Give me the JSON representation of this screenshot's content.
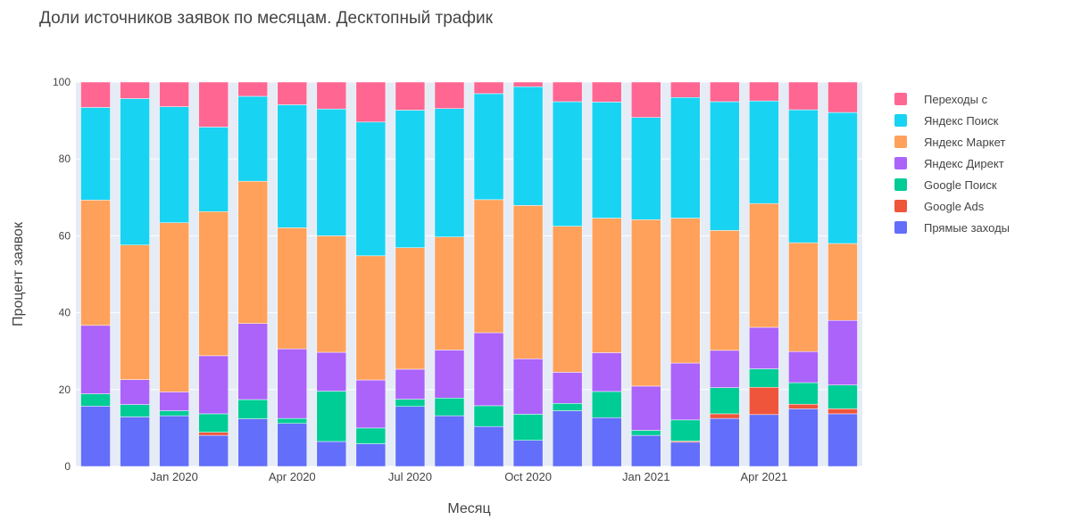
{
  "title": "Доли источников заявок по месяцам. Десктопный трафик",
  "colors": {
    "plot_bg": "#E5ECF6",
    "grid": "#FFFFFF",
    "axis_text": "#444444"
  },
  "chart_data": {
    "type": "bar",
    "barmode": "stack",
    "title": "Доли источников заявок по месяцам. Десктопный трафик",
    "xlabel": "Месяц",
    "ylabel": "Процент заявок",
    "ylim": [
      0,
      100
    ],
    "yticks": [
      0,
      20,
      40,
      60,
      80,
      100
    ],
    "xtick_labels": [
      {
        "label": "Jan 2020",
        "index": 2
      },
      {
        "label": "Apr 2020",
        "index": 5
      },
      {
        "label": "Jul 2020",
        "index": 8
      },
      {
        "label": "Oct 2020",
        "index": 11
      },
      {
        "label": "Jan 2021",
        "index": 14
      },
      {
        "label": "Apr 2021",
        "index": 17
      }
    ],
    "categories": [
      "2019-11",
      "2019-12",
      "2020-01",
      "2020-02",
      "2020-03",
      "2020-04",
      "2020-05",
      "2020-06",
      "2020-07",
      "2020-08",
      "2020-09",
      "2020-10",
      "2020-11",
      "2020-12",
      "2021-01",
      "2021-02",
      "2021-03",
      "2021-04",
      "2021-05",
      "2021-06"
    ],
    "legend_position": "right",
    "series": [
      {
        "name": "Прямые заходы",
        "color": "#636EFA",
        "values": [
          15.7,
          12.9,
          13.2,
          8.1,
          12.4,
          11.2,
          6.5,
          5.9,
          15.6,
          13.2,
          10.4,
          6.8,
          14.5,
          12.7,
          8.1,
          6.3,
          12.5,
          13.5,
          15.0,
          13.7
        ]
      },
      {
        "name": "Google Ads",
        "color": "#EF553B",
        "values": [
          0,
          0,
          0,
          0.8,
          0,
          0,
          0,
          0,
          0,
          0,
          0,
          0,
          0,
          0,
          0,
          0.3,
          1.2,
          7.1,
          1.2,
          1.3
        ]
      },
      {
        "name": "Google Поиск",
        "color": "#00CC96",
        "values": [
          3.2,
          3.2,
          1.3,
          4.8,
          5.0,
          1.3,
          13.1,
          4.1,
          1.9,
          4.6,
          5.4,
          6.8,
          1.9,
          6.8,
          1.3,
          5.5,
          6.8,
          4.8,
          5.6,
          6.2
        ]
      },
      {
        "name": "Яндекс Директ",
        "color": "#AB63FA",
        "values": [
          17.8,
          6.5,
          4.9,
          15.1,
          19.8,
          18.1,
          10.1,
          12.5,
          7.8,
          12.5,
          19.0,
          14.4,
          8.1,
          10.1,
          11.5,
          14.8,
          9.7,
          10.8,
          8.1,
          16.8
        ]
      },
      {
        "name": "Яндекс Маркет",
        "color": "#FFA15A",
        "values": [
          32.6,
          35.0,
          44.0,
          37.5,
          37.0,
          31.5,
          30.3,
          32.3,
          31.6,
          29.4,
          34.6,
          39.9,
          38.0,
          35.0,
          43.3,
          37.7,
          31.2,
          32.2,
          28.3,
          20.0
        ]
      },
      {
        "name": "Яндекс Поиск",
        "color": "#19D3F3",
        "values": [
          24.1,
          38.1,
          30.2,
          22.0,
          22.1,
          32.0,
          33.0,
          34.8,
          35.8,
          33.4,
          27.6,
          30.9,
          32.4,
          30.2,
          26.6,
          31.4,
          33.5,
          26.7,
          34.6,
          34.1
        ]
      },
      {
        "name": "Переходы с",
        "color": "#FF6692",
        "values": [
          6.6,
          4.3,
          6.4,
          11.7,
          3.7,
          5.9,
          7.0,
          10.4,
          7.3,
          6.9,
          3.0,
          1.2,
          5.1,
          5.2,
          9.2,
          4.0,
          5.1,
          4.9,
          7.2,
          7.9
        ]
      }
    ]
  }
}
